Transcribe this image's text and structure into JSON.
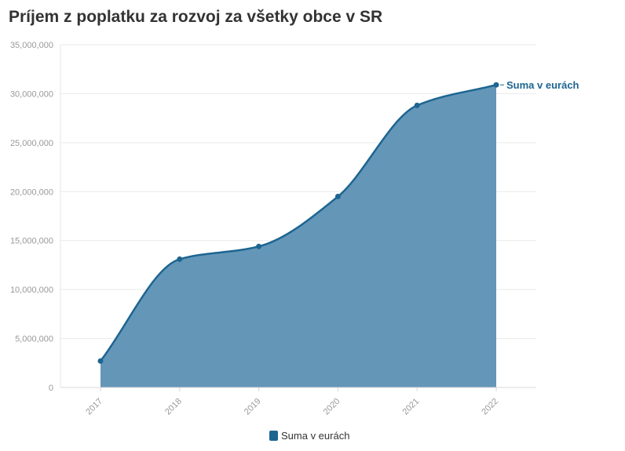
{
  "title": "Príjem z poplatku za rozvoj za všetky obce v SR",
  "colors": {
    "series": "#1d6591",
    "fill": "#6496b8",
    "grid": "#e9e9e9",
    "axis_text": "#999999"
  },
  "chart_data": {
    "type": "area",
    "title": "Príjem z poplatku za rozvoj za všetky obce v SR",
    "xlabel": "",
    "ylabel": "",
    "categories": [
      "2017",
      "2018",
      "2019",
      "2020",
      "2021",
      "2022"
    ],
    "series": [
      {
        "name": "Suma v eurách",
        "values": [
          2700000,
          13100000,
          14400000,
          19500000,
          28800000,
          30900000
        ]
      }
    ],
    "ylim": [
      0,
      35000000
    ],
    "yticks": [
      0,
      5000000,
      10000000,
      15000000,
      20000000,
      25000000,
      30000000,
      35000000
    ],
    "ytick_labels": [
      "0",
      "5,000,000",
      "10,000,000",
      "15,000,000",
      "20,000,000",
      "25,000,000",
      "30,000,000",
      "35,000,000"
    ],
    "grid": true,
    "legend": "bottom-center",
    "end_label": "Suma v eurách"
  },
  "legend": {
    "label": "Suma v eurách"
  }
}
